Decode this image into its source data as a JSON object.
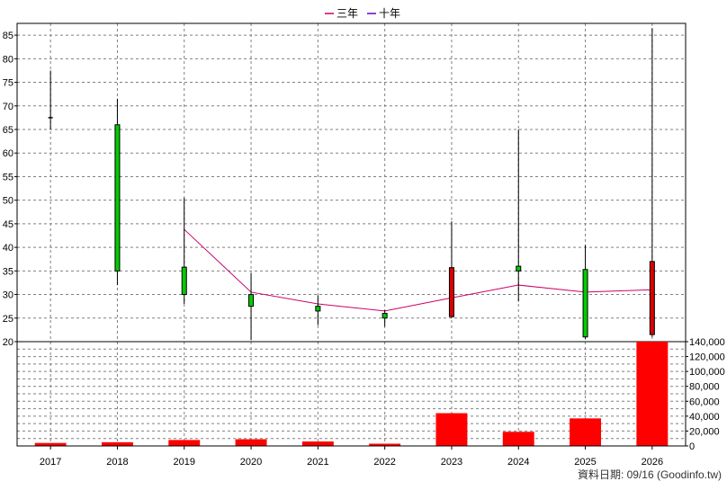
{
  "colors": {
    "up_candle": "#00cc00",
    "down_candle": "#dd0000",
    "volume_bar": "#ff0000",
    "three_year_line": "#cc0066",
    "ten_year_line": "#6600cc",
    "grid": "#808080"
  },
  "source_note": "資料日期: 09/16 (Goodinfo.tw)",
  "chart_data": {
    "type": "candlestick",
    "title": "",
    "grid": true,
    "legend": {
      "placement": "top-center",
      "entries": [
        {
          "label": "三年",
          "color": "#cc0066"
        },
        {
          "label": "十年",
          "color": "#6600cc"
        }
      ]
    },
    "categories": [
      "2017",
      "2018",
      "2019",
      "2020",
      "2021",
      "2022",
      "2023",
      "2024",
      "2025",
      "2026"
    ],
    "price_axis": {
      "ylim": [
        20,
        87.5
      ],
      "ticks": [
        20,
        25,
        30,
        35,
        40,
        45,
        50,
        55,
        60,
        65,
        70,
        75,
        80,
        85
      ],
      "tick_labels": [
        "20",
        "25",
        "30",
        "35",
        "40",
        "45",
        "50",
        "55",
        "60",
        "65",
        "70",
        "75",
        "80",
        "85"
      ]
    },
    "volume_axis": {
      "ylim": [
        0,
        140000
      ],
      "ticks": [
        0,
        20000,
        40000,
        60000,
        80000,
        100000,
        120000,
        140000
      ],
      "tick_labels": [
        "0",
        "20,000",
        "40,000",
        "60,000",
        "80,000",
        "100,000",
        "120,000",
        "140,000"
      ]
    },
    "candles": [
      {
        "year": "2017",
        "open": 67.5,
        "high": 77.5,
        "low": 65.0,
        "close": 67.5
      },
      {
        "year": "2018",
        "open": 35.0,
        "high": 71.5,
        "low": 32.0,
        "close": 66.0
      },
      {
        "year": "2019",
        "open": 30.0,
        "high": 50.5,
        "low": 28.0,
        "close": 35.8
      },
      {
        "year": "2020",
        "open": 27.5,
        "high": 34.5,
        "low": 20.3,
        "close": 30.0
      },
      {
        "year": "2021",
        "open": 26.5,
        "high": 29.8,
        "low": 23.5,
        "close": 27.5
      },
      {
        "year": "2022",
        "open": 25.0,
        "high": 26.7,
        "low": 23.2,
        "close": 26.0
      },
      {
        "year": "2023",
        "open": 35.7,
        "high": 45.5,
        "low": 25.0,
        "close": 25.3
      },
      {
        "year": "2024",
        "open": 35.0,
        "high": 65.0,
        "low": 28.5,
        "close": 36.0
      },
      {
        "year": "2025",
        "open": 21.0,
        "high": 40.5,
        "low": 20.5,
        "close": 35.3
      },
      {
        "year": "2026",
        "open": 37.0,
        "high": 86.5,
        "low": 21.0,
        "close": 21.5
      }
    ],
    "series": [
      {
        "name": "三年",
        "x": [
          "2019",
          "2020",
          "2021",
          "2022",
          "2023",
          "2024",
          "2025",
          "2026"
        ],
        "values": [
          43.8,
          30.5,
          28.0,
          26.5,
          29.3,
          32.0,
          30.5,
          31.0
        ]
      }
    ],
    "volume": [
      4000,
      5000,
      8000,
      9000,
      6000,
      3000,
      44000,
      19000,
      37000,
      140000
    ]
  }
}
